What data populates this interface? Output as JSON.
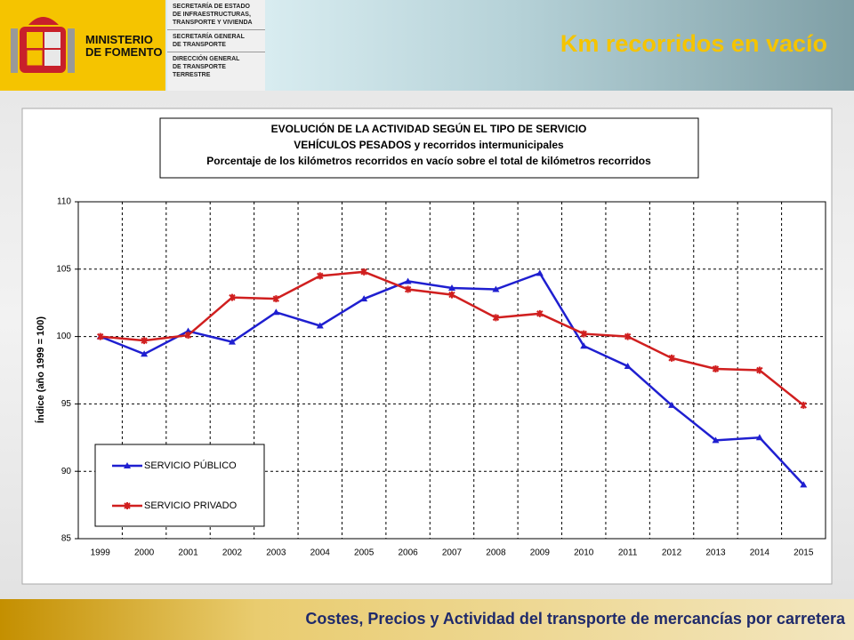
{
  "header": {
    "ministry": [
      "MINISTERIO",
      "DE FOMENTO"
    ],
    "blocks": [
      [
        "SECRETARÍA DE ESTADO",
        "DE INFRAESTRUCTURAS,",
        "TRANSPORTE Y VIVIENDA"
      ],
      [
        "SECRETARÍA GENERAL",
        "DE TRANSPORTE"
      ],
      [
        "DIRECCIÓN GENERAL",
        "DE TRANSPORTE",
        "TERRESTRE"
      ]
    ],
    "title": "Km recorridos en vacío"
  },
  "footer": "Costes, Precios y Actividad del transporte de mercancías por carretera",
  "chart_data": {
    "type": "line",
    "title": [
      "EVOLUCIÓN DE LA ACTIVIDAD SEGÚN EL TIPO DE SERVICIO",
      "VEHÍCULOS PESADOS y recorridos intermunicipales",
      "Porcentaje de los kilómetros recorridos en vacío sobre el total de kilómetros recorridos"
    ],
    "y_label": "Índice (año 1999 = 100)",
    "categories": [
      "1999",
      "2000",
      "2001",
      "2002",
      "2003",
      "2004",
      "2005",
      "2006",
      "2007",
      "2008",
      "2009",
      "2010",
      "2011",
      "2012",
      "2013",
      "2014",
      "2015"
    ],
    "ylim": [
      85,
      110
    ],
    "yticks": [
      85,
      90,
      95,
      100,
      105,
      110
    ],
    "grid": true,
    "series": [
      {
        "name": "SERVICIO PÚBLICO",
        "color": "#1f1fd0",
        "marker": "triangle",
        "values": [
          100,
          98.7,
          100.4,
          99.6,
          101.8,
          100.8,
          102.8,
          104.1,
          103.6,
          103.5,
          104.7,
          99.3,
          97.8,
          94.9,
          92.3,
          92.5,
          89.0
        ]
      },
      {
        "name": "SERVICIO PRIVADO",
        "color": "#d01f1f",
        "marker": "star",
        "values": [
          100,
          99.7,
          100.1,
          102.9,
          102.8,
          104.5,
          104.8,
          103.5,
          103.1,
          101.4,
          101.7,
          100.2,
          100.0,
          98.4,
          97.6,
          97.5,
          94.9
        ]
      }
    ]
  }
}
